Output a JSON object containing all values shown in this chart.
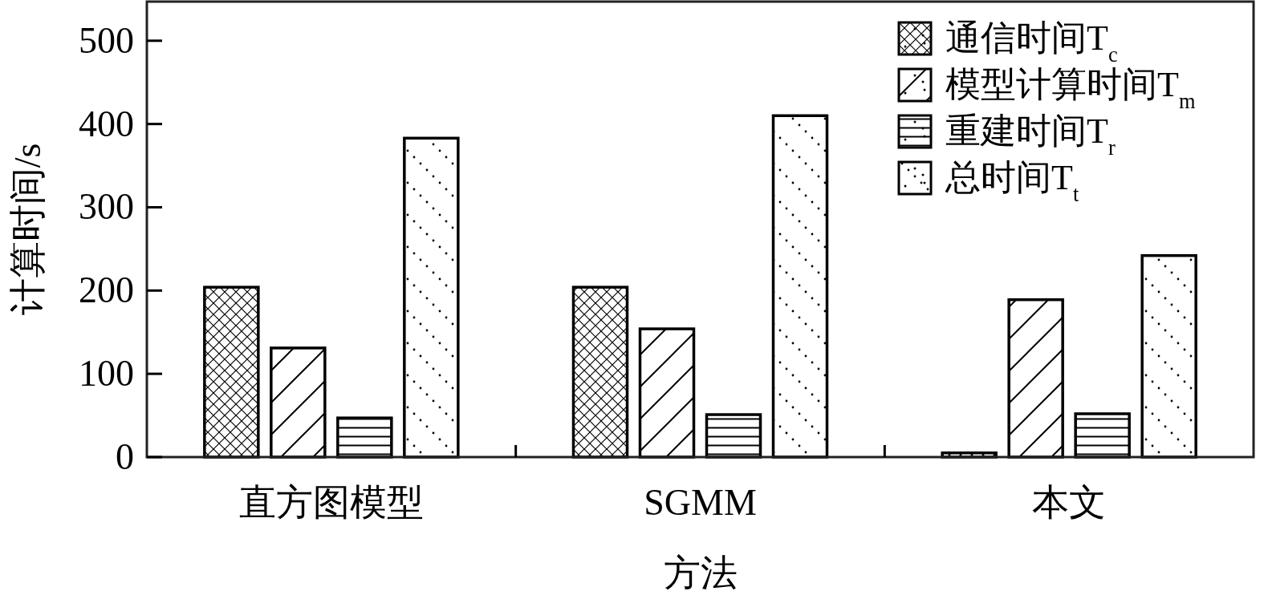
{
  "chart_data": {
    "type": "bar",
    "xlabel": "方法",
    "ylabel": "计算时间/s",
    "categories": [
      "直方图模型",
      "SGMM",
      "本文"
    ],
    "series": [
      {
        "name": "通信时间T$_{c}$",
        "color": "#000000",
        "values": [
          204,
          204,
          5
        ]
      },
      {
        "name": "模型计算时间T$_{m}$",
        "color": "#000000",
        "values": [
          131,
          154,
          189
        ]
      },
      {
        "name": "重建时间T$_{r}$",
        "color": "#000000",
        "values": [
          47,
          51,
          52
        ]
      },
      {
        "name": "总时间T$_{t}$",
        "color": "#000000",
        "values": [
          383,
          410,
          242
        ]
      }
    ],
    "ylim": [
      0,
      547
    ],
    "yticks": [
      0,
      100,
      200,
      300,
      400,
      500
    ],
    "grid": false,
    "legend": "top right"
  }
}
